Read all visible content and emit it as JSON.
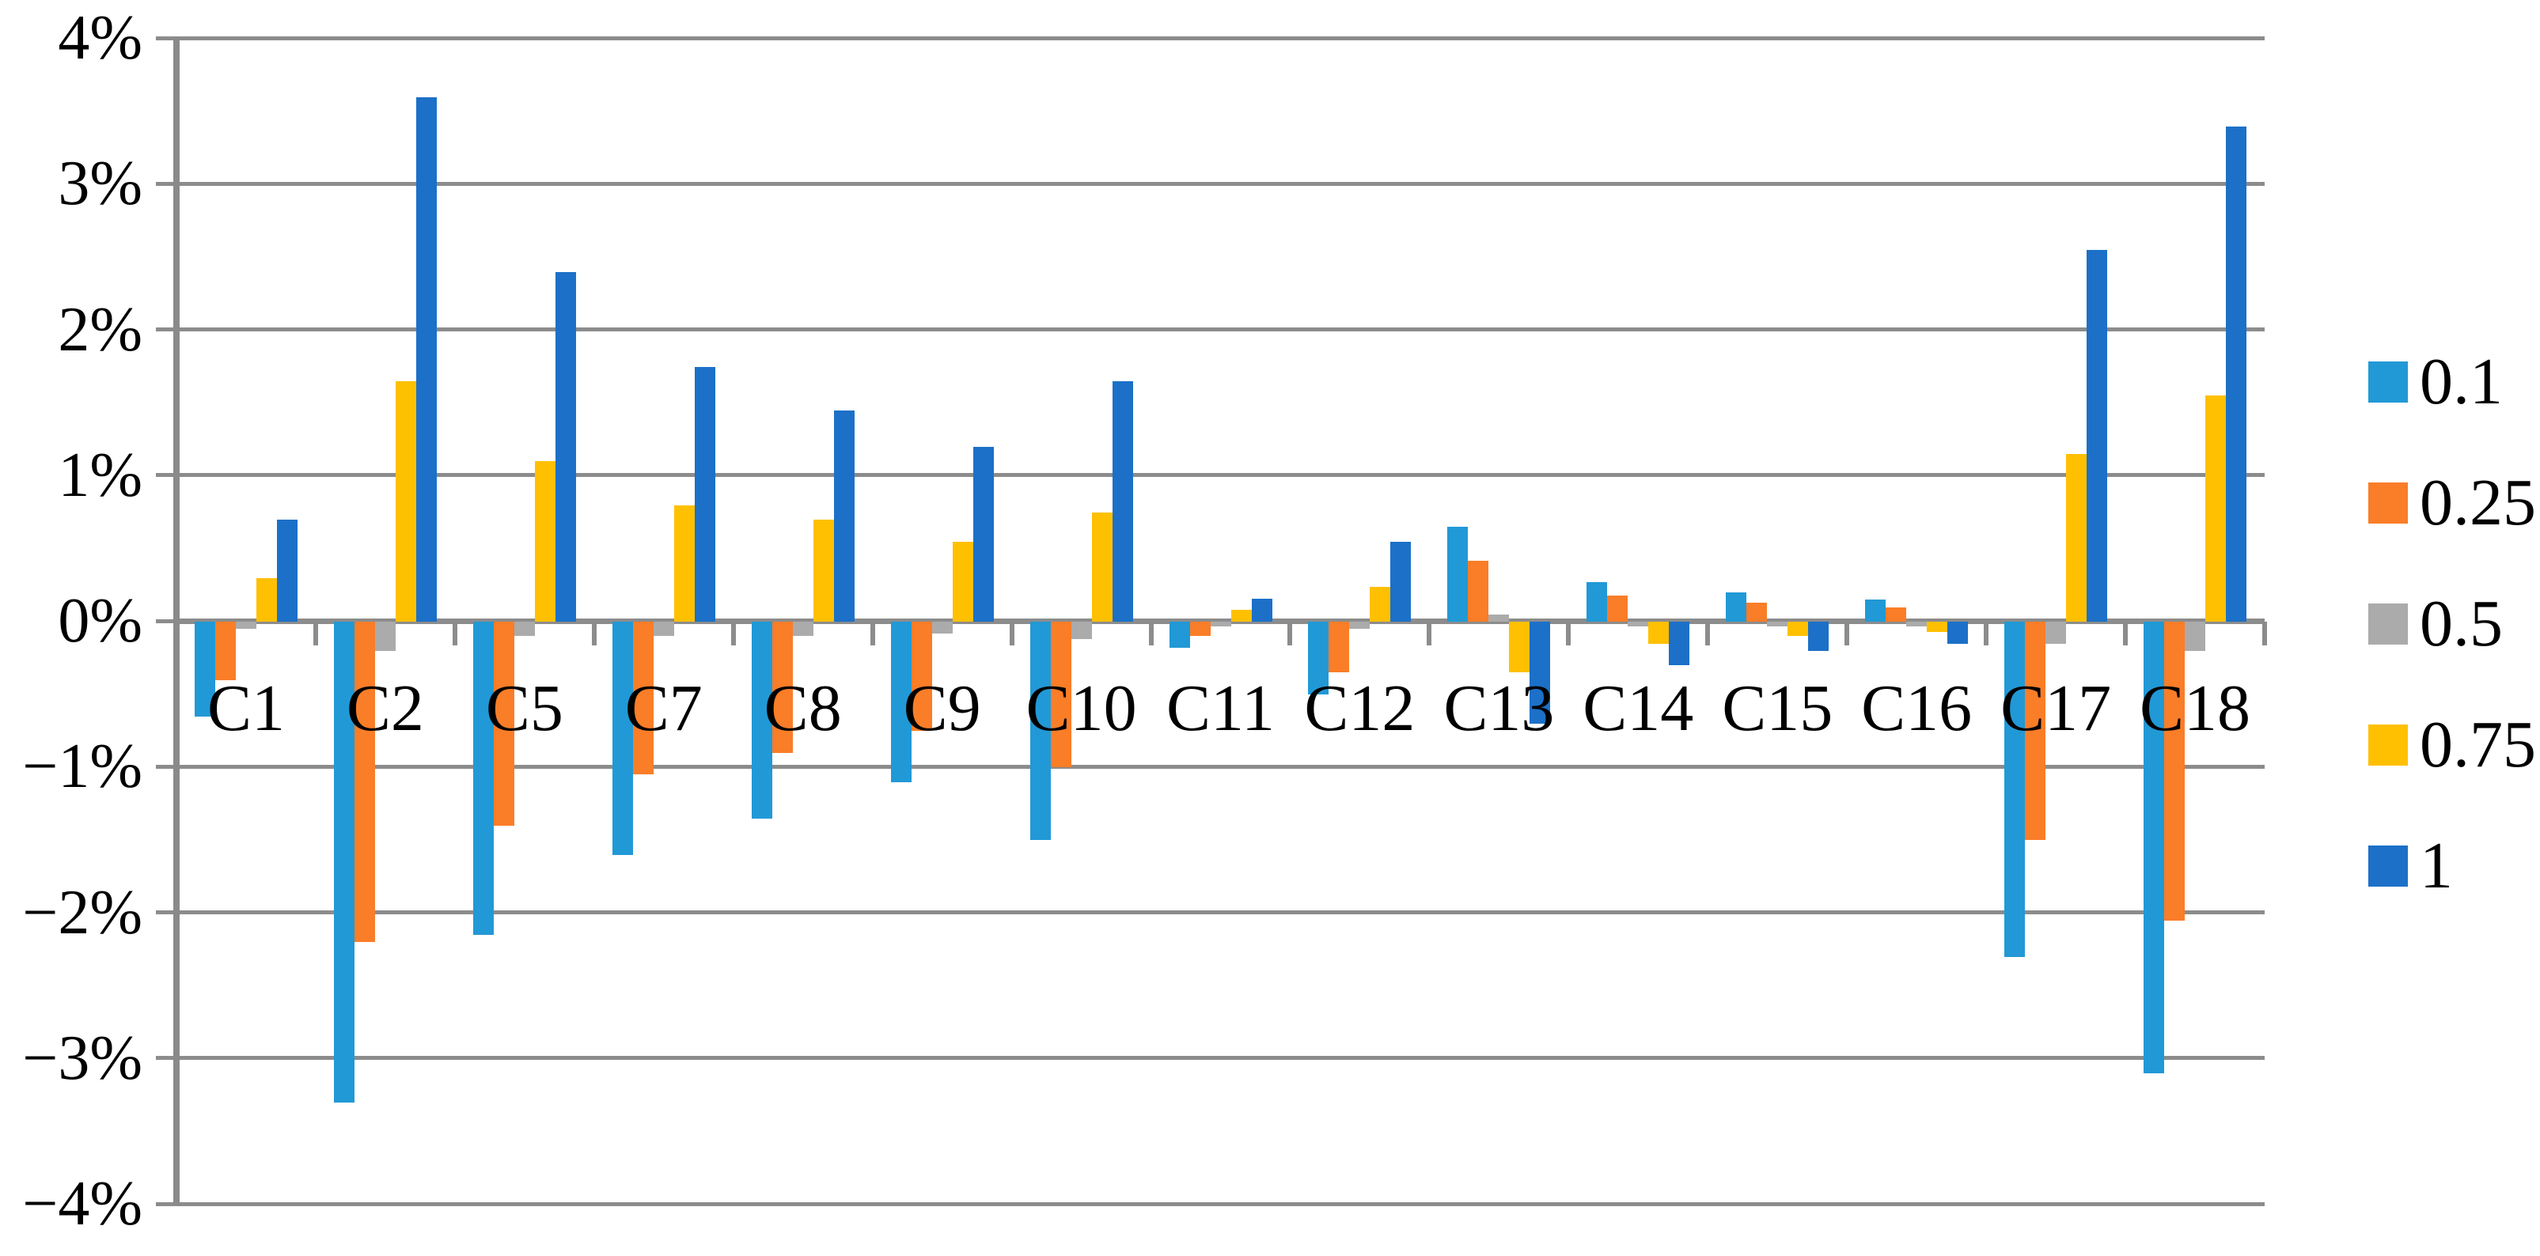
{
  "chart_data": {
    "type": "bar",
    "title": "",
    "xlabel": "",
    "ylabel": "",
    "categories": [
      "C1",
      "C2",
      "C5",
      "C7",
      "C8",
      "C9",
      "C10",
      "C11",
      "C12",
      "C13",
      "C14",
      "C15",
      "C16",
      "C17",
      "C18"
    ],
    "series": [
      {
        "name": "0.1",
        "color": "#2199D6",
        "values": [
          -0.65,
          -3.3,
          -2.15,
          -1.6,
          -1.35,
          -1.1,
          -1.5,
          -0.18,
          -0.5,
          0.65,
          0.27,
          0.2,
          0.15,
          -2.3,
          -3.1
        ]
      },
      {
        "name": "0.25",
        "color": "#FA7D28",
        "values": [
          -0.4,
          -2.2,
          -1.4,
          -1.05,
          -0.9,
          -0.75,
          -1.0,
          -0.1,
          -0.35,
          0.42,
          0.18,
          0.13,
          0.1,
          -1.5,
          -2.05
        ]
      },
      {
        "name": "0.5",
        "color": "#ABABAB",
        "values": [
          -0.05,
          -0.2,
          -0.1,
          -0.1,
          -0.1,
          -0.08,
          -0.12,
          -0.03,
          -0.05,
          0.05,
          -0.03,
          -0.03,
          -0.03,
          -0.15,
          -0.2
        ]
      },
      {
        "name": "0.75",
        "color": "#FFC001",
        "values": [
          0.3,
          1.65,
          1.1,
          0.8,
          0.7,
          0.55,
          0.75,
          0.08,
          0.24,
          -0.35,
          -0.15,
          -0.1,
          -0.07,
          1.15,
          1.55
        ]
      },
      {
        "name": "1",
        "color": "#1C70C8",
        "values": [
          0.7,
          3.6,
          2.4,
          1.75,
          1.45,
          1.2,
          1.65,
          0.16,
          0.55,
          -0.7,
          -0.3,
          -0.2,
          -0.15,
          2.55,
          3.4
        ]
      }
    ],
    "y_axis": {
      "min": -4,
      "max": 4,
      "step": 1,
      "tick_labels": [
        "4%",
        "3%",
        "2%",
        "1%",
        "0%",
        "−1%",
        "−2%",
        "−3%",
        "−4%"
      ],
      "format": "percent"
    },
    "grid": true,
    "legend_position": "right",
    "legend_labels": [
      "0.1",
      "0.25",
      "0.5",
      "0.75",
      "1"
    ],
    "colors": {
      "gridline": "#8C8C8C",
      "axis": "#8A8A8A",
      "background": "#FFFFFF",
      "text": "#000000"
    }
  }
}
